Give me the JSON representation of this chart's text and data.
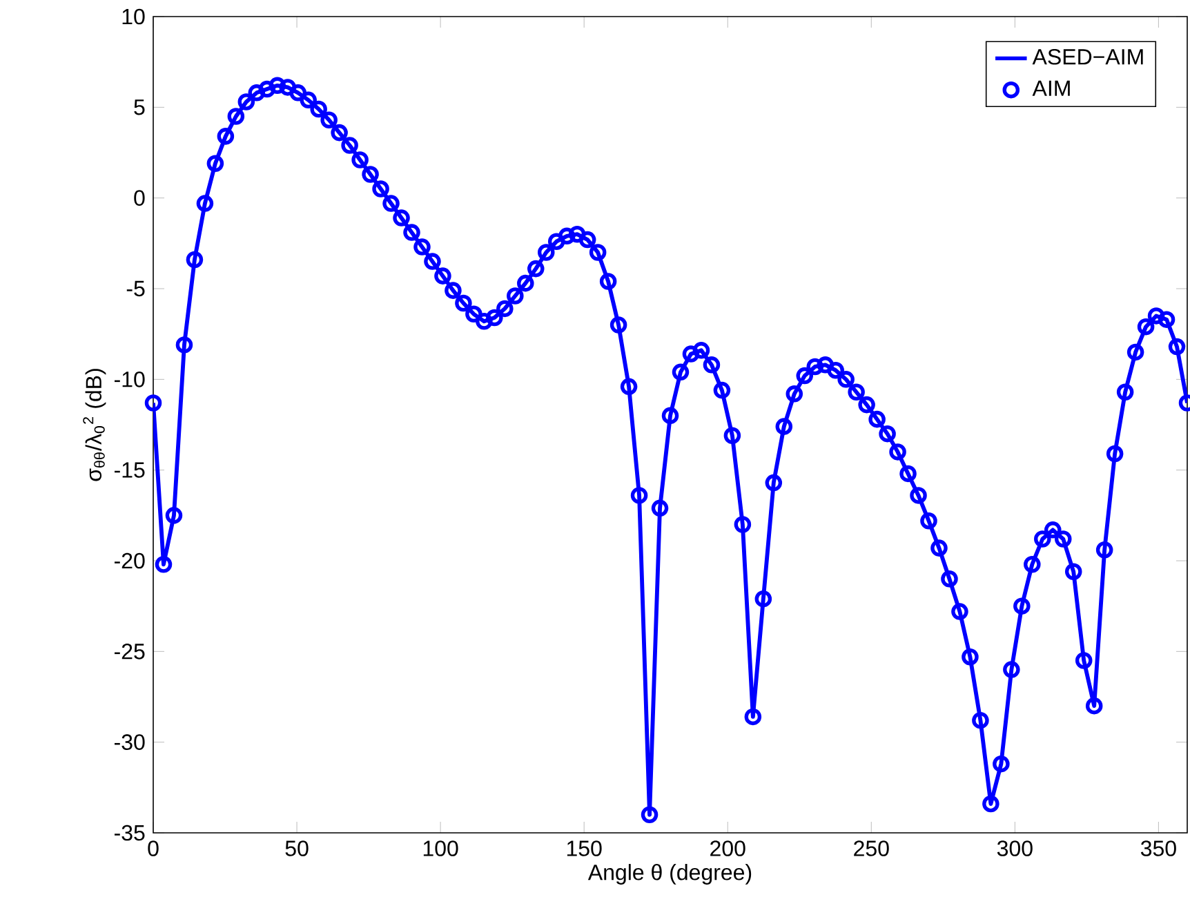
{
  "chart_data": {
    "type": "line",
    "xlabel": "Angle θ (degree)",
    "ylabel": "σ$_{θθ}$/λ$_{0}$$^{2}$ (dB)",
    "xlim": [
      0,
      360
    ],
    "ylim": [
      -35,
      10
    ],
    "xticks": [
      0,
      50,
      100,
      150,
      200,
      250,
      300,
      350
    ],
    "yticks": [
      -35,
      -30,
      -25,
      -20,
      -15,
      -10,
      -5,
      0,
      5,
      10
    ],
    "legend": "top right",
    "grid": false,
    "x": [
      0,
      3.6,
      7.2,
      10.8,
      14.4,
      18,
      21.6,
      25.2,
      28.8,
      32.4,
      36,
      39.6,
      43.2,
      46.8,
      50.4,
      54,
      57.6,
      61.2,
      64.8,
      68.4,
      72,
      75.6,
      79.2,
      82.8,
      86.4,
      90,
      93.6,
      97.2,
      100.8,
      104.4,
      108,
      111.6,
      115.2,
      118.8,
      122.4,
      126,
      129.6,
      133.2,
      136.8,
      140.4,
      144,
      147.6,
      151.2,
      154.8,
      158.4,
      162,
      165.6,
      169.2,
      172.8,
      176.4,
      180,
      183.6,
      187.2,
      190.8,
      194.4,
      198,
      201.6,
      205.2,
      208.8,
      212.4,
      216,
      219.6,
      223.2,
      226.8,
      230.4,
      234,
      237.6,
      241.2,
      244.8,
      248.4,
      252,
      255.6,
      259.2,
      262.8,
      266.4,
      270,
      273.6,
      277.2,
      280.8,
      284.4,
      288,
      291.6,
      295.2,
      298.8,
      302.4,
      306,
      309.6,
      313.2,
      316.8,
      320.4,
      324,
      327.6,
      331.2,
      334.8,
      338.4,
      342,
      345.6,
      349.2,
      352.8,
      356.4,
      360
    ],
    "series": [
      {
        "name": "ASED−AIM",
        "marker": "none",
        "color": "#0000ff",
        "values": [
          -11.3,
          -20.2,
          -17.5,
          -8.1,
          -3.4,
          -0.3,
          1.9,
          3.4,
          4.5,
          5.3,
          5.8,
          6.0,
          6.2,
          6.1,
          5.8,
          5.4,
          4.9,
          4.3,
          3.6,
          2.9,
          2.1,
          1.3,
          0.5,
          -0.3,
          -1.1,
          -1.9,
          -2.7,
          -3.5,
          -4.3,
          -5.1,
          -5.8,
          -6.4,
          -6.8,
          -6.6,
          -6.1,
          -5.4,
          -4.7,
          -3.9,
          -3.0,
          -2.4,
          -2.1,
          -2.0,
          -2.3,
          -3.0,
          -4.6,
          -7.0,
          -10.4,
          -16.4,
          -34.0,
          -17.1,
          -12.0,
          -9.6,
          -8.6,
          -8.4,
          -9.2,
          -10.6,
          -13.1,
          -18.0,
          -28.6,
          -22.1,
          -15.7,
          -12.6,
          -10.8,
          -9.8,
          -9.3,
          -9.2,
          -9.5,
          -10.0,
          -10.7,
          -11.4,
          -12.2,
          -13.0,
          -14.0,
          -15.2,
          -16.4,
          -17.8,
          -19.3,
          -21.0,
          -22.8,
          -25.3,
          -28.8,
          -33.4,
          -31.2,
          -26.0,
          -22.5,
          -20.2,
          -18.8,
          -18.3,
          -18.8,
          -20.6,
          -25.5,
          -28.0,
          -19.4,
          -14.1,
          -10.7,
          -8.5,
          -7.1,
          -6.5,
          -6.7,
          -8.2,
          -11.3
        ]
      },
      {
        "name": "AIM",
        "type": "scatter",
        "marker": "circle",
        "color": "#0000ff",
        "values": [
          -11.3,
          -20.2,
          -17.5,
          -8.1,
          -3.4,
          -0.3,
          1.9,
          3.4,
          4.5,
          5.3,
          5.8,
          6.0,
          6.2,
          6.1,
          5.8,
          5.4,
          4.9,
          4.3,
          3.6,
          2.9,
          2.1,
          1.3,
          0.5,
          -0.3,
          -1.1,
          -1.9,
          -2.7,
          -3.5,
          -4.3,
          -5.1,
          -5.8,
          -6.4,
          -6.8,
          -6.6,
          -6.1,
          -5.4,
          -4.7,
          -3.9,
          -3.0,
          -2.4,
          -2.1,
          -2.0,
          -2.3,
          -3.0,
          -4.6,
          -7.0,
          -10.4,
          -16.4,
          -34.0,
          -17.1,
          -12.0,
          -9.6,
          -8.6,
          -8.4,
          -9.2,
          -10.6,
          -13.1,
          -18.0,
          -28.6,
          -22.1,
          -15.7,
          -12.6,
          -10.8,
          -9.8,
          -9.3,
          -9.2,
          -9.5,
          -10.0,
          -10.7,
          -11.4,
          -12.2,
          -13.0,
          -14.0,
          -15.2,
          -16.4,
          -17.8,
          -19.3,
          -21.0,
          -22.8,
          -25.3,
          -28.8,
          -33.4,
          -31.2,
          -26.0,
          -22.5,
          -20.2,
          -18.8,
          -18.3,
          -18.8,
          -20.6,
          -25.5,
          -28.0,
          -19.4,
          -14.1,
          -10.7,
          -8.5,
          -7.1,
          -6.5,
          -6.7,
          -8.2,
          -11.3
        ]
      }
    ]
  }
}
